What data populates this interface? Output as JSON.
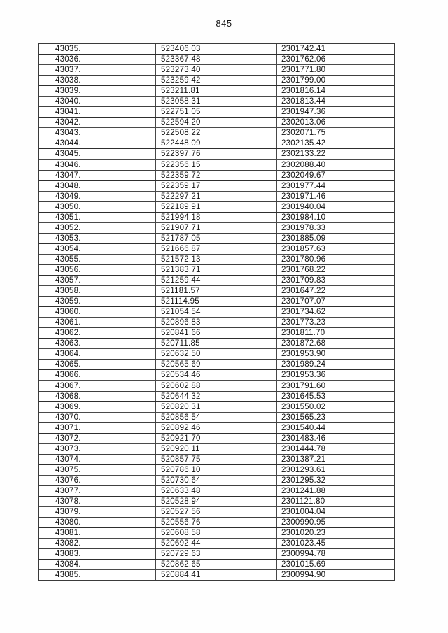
{
  "page": {
    "number": "845"
  },
  "table": {
    "rows": [
      [
        "43035.",
        "523406.03",
        "2301742.41"
      ],
      [
        "43036.",
        "523367.48",
        "2301762.06"
      ],
      [
        "43037.",
        "523273.40",
        "2301771.80"
      ],
      [
        "43038.",
        "523259.42",
        "2301799.00"
      ],
      [
        "43039.",
        "523211.81",
        "2301816.14"
      ],
      [
        "43040.",
        "523058.31",
        "2301813.44"
      ],
      [
        "43041.",
        "522751.05",
        "2301947.36"
      ],
      [
        "43042.",
        "522594.20",
        "2302013.06"
      ],
      [
        "43043.",
        "522508.22",
        "2302071.75"
      ],
      [
        "43044.",
        "522448.09",
        "2302135.42"
      ],
      [
        "43045.",
        "522397.76",
        "2302133.22"
      ],
      [
        "43046.",
        "522356.15",
        "2302088.40"
      ],
      [
        "43047.",
        "522359.72",
        "2302049.67"
      ],
      [
        "43048.",
        "522359.17",
        "2301977.44"
      ],
      [
        "43049.",
        "522297.21",
        "2301971.46"
      ],
      [
        "43050.",
        "522189.91",
        "2301940.04"
      ],
      [
        "43051.",
        "521994.18",
        "2301984.10"
      ],
      [
        "43052.",
        "521907.71",
        "2301978.33"
      ],
      [
        "43053.",
        "521787.05",
        "2301885.09"
      ],
      [
        "43054.",
        "521666.87",
        "2301857.63"
      ],
      [
        "43055.",
        "521572.13",
        "2301780.96"
      ],
      [
        "43056.",
        "521383.71",
        "2301768.22"
      ],
      [
        "43057.",
        "521259.44",
        "2301709.83"
      ],
      [
        "43058.",
        "521181.57",
        "2301647.22"
      ],
      [
        "43059.",
        "521114.95",
        "2301707.07"
      ],
      [
        "43060.",
        "521054.54",
        "2301734.62"
      ],
      [
        "43061.",
        "520896.83",
        "2301773.23"
      ],
      [
        "43062.",
        "520841.66",
        "2301811.70"
      ],
      [
        "43063.",
        "520711.85",
        "2301872.68"
      ],
      [
        "43064.",
        "520632.50",
        "2301953.90"
      ],
      [
        "43065.",
        "520565.69",
        "2301989.24"
      ],
      [
        "43066.",
        "520534.46",
        "2301953.36"
      ],
      [
        "43067.",
        "520602.88",
        "2301791.60"
      ],
      [
        "43068.",
        "520644.32",
        "2301645.53"
      ],
      [
        "43069.",
        "520820.31",
        "2301550.02"
      ],
      [
        "43070.",
        "520856.54",
        "2301565.23"
      ],
      [
        "43071.",
        "520892.46",
        "2301540.44"
      ],
      [
        "43072.",
        "520921.70",
        "2301483.46"
      ],
      [
        "43073.",
        "520920.11",
        "2301444.78"
      ],
      [
        "43074.",
        "520857.75",
        "2301387.21"
      ],
      [
        "43075.",
        "520786.10",
        "2301293.61"
      ],
      [
        "43076.",
        "520730.64",
        "2301295.32"
      ],
      [
        "43077.",
        "520633.48",
        "2301241.88"
      ],
      [
        "43078.",
        "520528.94",
        "2301121.80"
      ],
      [
        "43079.",
        "520527.56",
        "2301004.04"
      ],
      [
        "43080.",
        "520556.76",
        "2300990.95"
      ],
      [
        "43081.",
        "520608.58",
        "2301020.23"
      ],
      [
        "43082.",
        "520692.44",
        "2301023.45"
      ],
      [
        "43083.",
        "520729.63",
        "2300994.78"
      ],
      [
        "43084.",
        "520862.65",
        "2301015.69"
      ],
      [
        "43085.",
        "520884.41",
        "2300994.90"
      ]
    ]
  }
}
